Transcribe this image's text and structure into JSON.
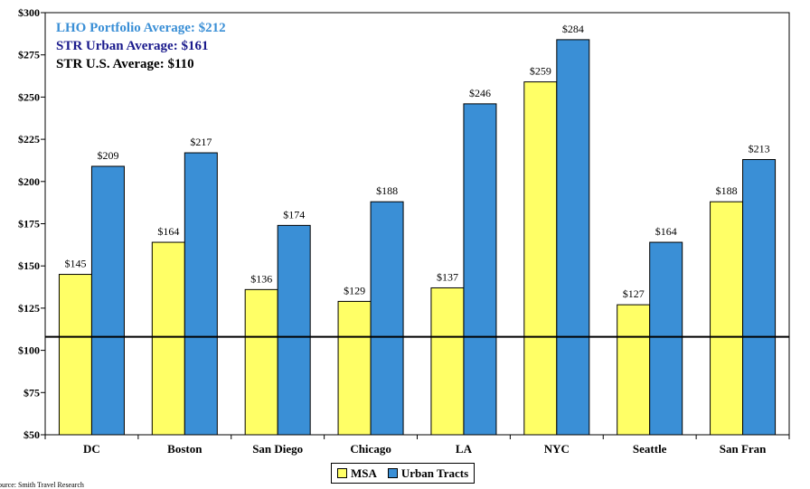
{
  "colors": {
    "msa": "#ffff66",
    "urban": "#3a8fd6",
    "lho": "#3a8fd6",
    "str_urban": "#1a1a8c",
    "str_us": "#000000"
  },
  "annotations": [
    {
      "text": "LHO Portfolio Average: $212",
      "color": "#3a8fd6"
    },
    {
      "text": "STR Urban Average: $161",
      "color": "#1a1a8c"
    },
    {
      "text": "STR U.S. Average: $110",
      "color": "#000000"
    }
  ],
  "source": "ource:        Smith Travel Research",
  "chart_data": {
    "type": "bar",
    "categories": [
      "DC",
      "Boston",
      "San Diego",
      "Chicago",
      "LA",
      "NYC",
      "Seattle",
      "San Fran"
    ],
    "series": [
      {
        "name": "MSA",
        "values": [
          145,
          164,
          136,
          129,
          137,
          259,
          127,
          188
        ],
        "labels": [
          "$145",
          "$164",
          "$136",
          "$129",
          "$137",
          "$259",
          "$127",
          "$188"
        ]
      },
      {
        "name": "Urban Tracts",
        "values": [
          209,
          217,
          174,
          188,
          246,
          284,
          164,
          213
        ],
        "labels": [
          "$209",
          "$217",
          "$174",
          "$188",
          "$246",
          "$284",
          "$164",
          "$213"
        ]
      }
    ],
    "ylim": [
      50,
      300
    ],
    "yticks": [
      50,
      75,
      100,
      125,
      150,
      175,
      200,
      225,
      250,
      275,
      300
    ],
    "ytick_labels": [
      "$50",
      "$75",
      "$100",
      "$125",
      "$150",
      "$175",
      "$200",
      "$225",
      "$250",
      "$275",
      "$300"
    ],
    "reference_line": 108,
    "legend_position": "bottom-center"
  }
}
